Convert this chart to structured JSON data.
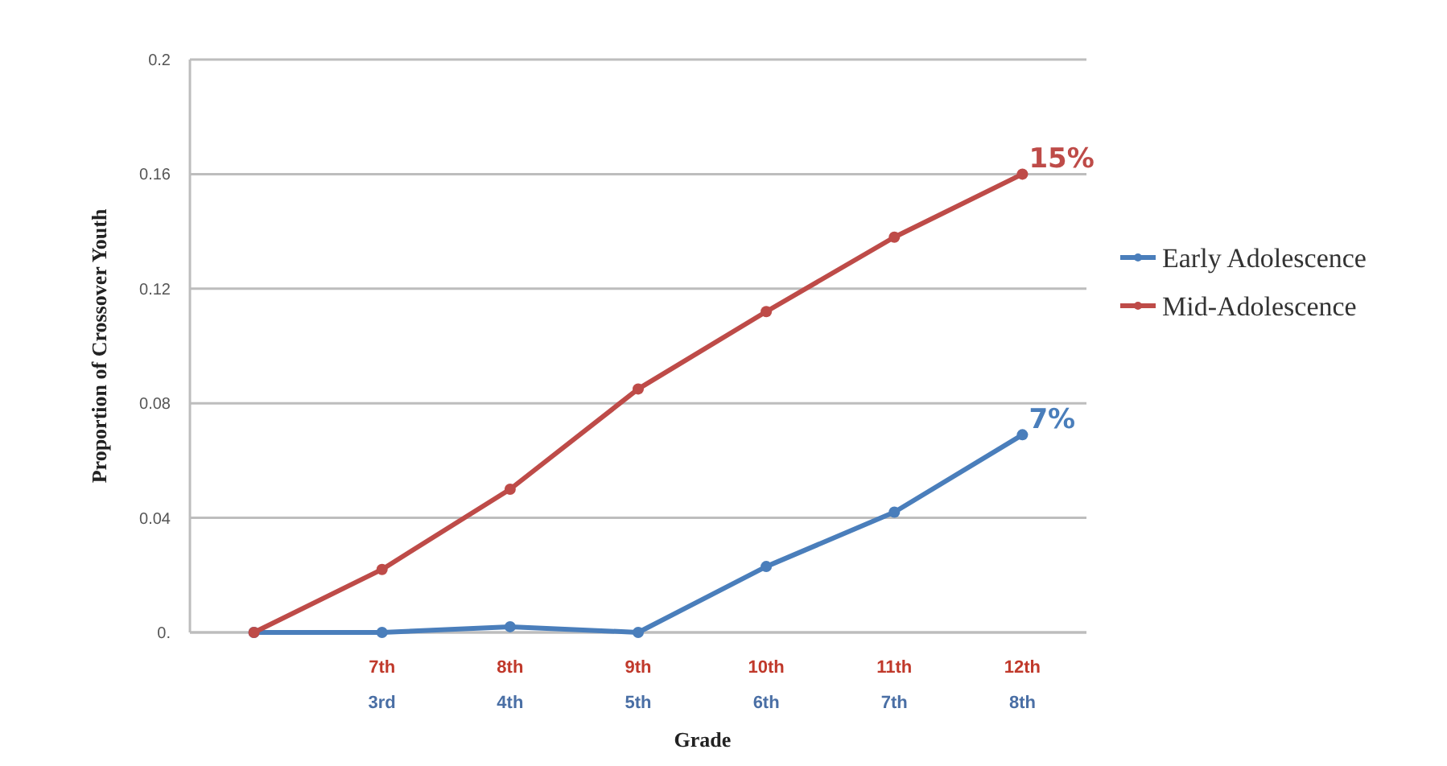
{
  "chart_data": {
    "type": "line",
    "xlabel": "Grade",
    "ylabel": "Proportion of Crossover Youth",
    "categories": [
      null,
      "7th\n3rd",
      "8th\n4th",
      "9th\n5th",
      "10th\n6th",
      "11th\n7th",
      "12th\n8th"
    ],
    "ylim": [
      0,
      0.2
    ],
    "yticks": [
      {
        "value": 0,
        "label": "0."
      },
      0.04,
      0.08,
      0.12,
      0.16,
      0.2
    ],
    "series": [
      {
        "name": "Early Adolescence",
        "color": "#4a7ebb",
        "values": [
          0,
          0,
          0.002,
          0,
          0.023,
          0.042,
          0.069
        ]
      },
      {
        "name": "Mid-Adolescence",
        "color": "#be4b48",
        "values": [
          0,
          0.022,
          0.05,
          0.085,
          0.112,
          0.138,
          0.16
        ]
      }
    ],
    "annotations": [
      "15%",
      "7%"
    ],
    "grid": "y",
    "legend": "right",
    "marker": "circle",
    "line_style": "solid"
  }
}
